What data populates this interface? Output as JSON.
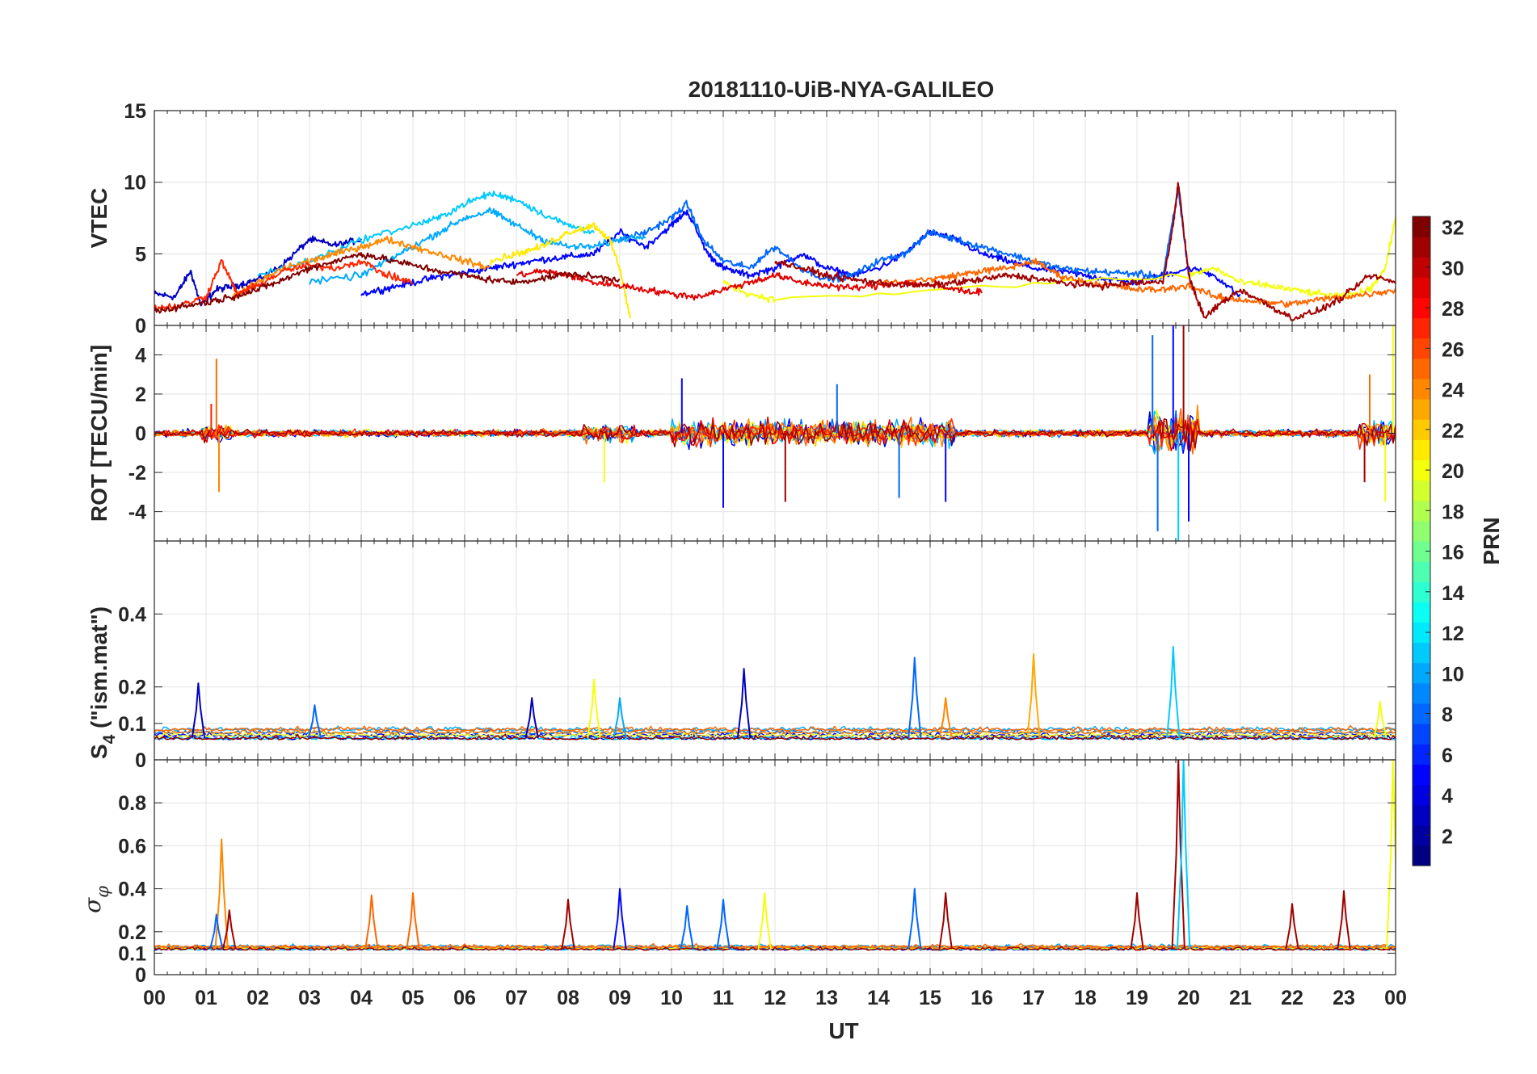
{
  "chart_data": [
    {
      "type": "line",
      "panel": "vtec",
      "title": "20181110-UiB-NYA-GALILEO",
      "ylabel": "VTEC",
      "ylim": [
        0,
        15
      ],
      "yticks": [
        0,
        5,
        10,
        15
      ],
      "xlim": [
        0,
        24
      ],
      "grid": true,
      "series_note": "",
      "series": [
        {
          "prn": 3,
          "x": [
            0.0,
            0.4,
            0.7,
            0.9,
            1.2,
            1.6,
            2.0,
            2.5,
            3.0,
            3.5,
            4.0
          ],
          "y": [
            2.2,
            2.0,
            3.8,
            1.4,
            2.5,
            2.8,
            3.2,
            4.3,
            6.0,
            5.6,
            6.0
          ]
        },
        {
          "prn": 5,
          "x": [
            4.0,
            4.5,
            5.0,
            5.5,
            6.0,
            6.5,
            7.0,
            7.5,
            8.0,
            8.5,
            9.0,
            9.5,
            10.0,
            10.3,
            10.7,
            11.0,
            11.5,
            12.0,
            12.5,
            13.0,
            13.5,
            14.0,
            14.5,
            15.0,
            15.5,
            16.0,
            16.5,
            17.0,
            17.5,
            18.0,
            18.5,
            19.0,
            19.5,
            20.0,
            20.5,
            21.0
          ],
          "y": [
            2.2,
            2.6,
            3.0,
            3.4,
            3.7,
            4.0,
            4.3,
            4.6,
            4.8,
            5.0,
            6.5,
            5.5,
            7.0,
            8.0,
            5.0,
            4.0,
            3.5,
            4.0,
            5.0,
            4.0,
            3.5,
            4.0,
            5.0,
            6.5,
            6.0,
            5.0,
            4.5,
            4.0,
            3.8,
            3.5,
            3.2,
            3.0,
            3.5,
            4.0,
            3.5,
            2.0
          ]
        },
        {
          "prn": 8,
          "x": [
            9.0,
            9.5,
            10.0,
            10.3,
            10.6,
            11.0,
            11.5,
            12.0,
            12.5,
            13.0,
            13.5,
            14.0,
            14.5,
            15.0,
            15.5,
            16.0,
            16.5,
            17.0,
            17.5,
            18.0,
            18.5,
            19.0,
            19.5,
            19.8,
            20.0
          ],
          "y": [
            6.0,
            6.5,
            7.5,
            8.5,
            6.0,
            4.5,
            4.0,
            5.5,
            4.0,
            3.2,
            3.5,
            4.5,
            5.0,
            6.5,
            6.0,
            5.5,
            5.0,
            4.5,
            4.0,
            3.8,
            3.7,
            3.6,
            3.4,
            9.5,
            3.5
          ]
        },
        {
          "prn": 11,
          "x": [
            2.0,
            3.0,
            4.0,
            5.0,
            5.5,
            6.0,
            6.5,
            7.0,
            7.5,
            8.0,
            8.5
          ],
          "y": [
            3.5,
            4.5,
            6.0,
            7.0,
            7.5,
            8.5,
            9.2,
            8.8,
            7.8,
            7.0,
            6.5
          ]
        },
        {
          "prn": 10,
          "x": [
            3.0,
            4.0,
            4.5,
            5.0,
            5.5,
            6.0,
            6.5,
            7.0,
            7.5,
            8.0,
            8.5,
            9.0,
            9.5
          ],
          "y": [
            3.0,
            3.5,
            4.5,
            5.5,
            6.5,
            7.5,
            8.0,
            7.0,
            6.0,
            5.5,
            5.5,
            6.0,
            6.3
          ]
        },
        {
          "prn": 21,
          "x": [
            6.5,
            7.0,
            7.5,
            8.0,
            8.5,
            8.8,
            9.0,
            9.2
          ],
          "y": [
            4.5,
            5.0,
            5.5,
            6.5,
            7.0,
            6.0,
            4.0,
            0.5
          ]
        },
        {
          "prn": 20,
          "x": [
            11.0,
            11.5,
            12.0,
            20.0,
            20.5,
            21.0,
            21.5,
            22.0,
            22.5,
            23.0,
            23.5,
            23.8,
            24.0
          ],
          "y": [
            3.0,
            2.2,
            1.8,
            3.5,
            4.0,
            3.0,
            2.8,
            2.5,
            2.2,
            2.0,
            2.5,
            4.0,
            7.5
          ]
        },
        {
          "prn": 24,
          "x": [
            1.5,
            2.0,
            2.5,
            3.0,
            3.5,
            4.0,
            4.5,
            5.0,
            5.5,
            6.0,
            6.5
          ],
          "y": [
            2.0,
            3.0,
            4.0,
            4.5,
            5.0,
            5.5,
            6.0,
            5.5,
            5.0,
            4.5,
            4.0
          ]
        },
        {
          "prn": 25,
          "x": [
            14.0,
            15.0,
            15.5,
            16.0,
            16.5,
            17.0,
            17.5,
            18.0,
            18.5,
            19.0,
            19.5,
            20.0,
            20.5,
            21.0,
            21.5,
            22.0,
            22.5,
            23.0,
            23.5,
            24.0
          ],
          "y": [
            3.0,
            3.2,
            3.5,
            3.8,
            4.0,
            4.5,
            3.5,
            3.0,
            2.8,
            2.5,
            2.5,
            2.8,
            2.0,
            1.8,
            1.6,
            1.5,
            1.8,
            2.0,
            2.2,
            2.5
          ]
        },
        {
          "prn": 27,
          "x": [
            0.0,
            0.5,
            1.0,
            1.3,
            1.6,
            2.0,
            2.5,
            3.0,
            3.5,
            4.0,
            4.5,
            5.0
          ],
          "y": [
            1.2,
            1.4,
            2.0,
            4.5,
            2.2,
            2.8,
            3.8,
            4.2,
            4.0,
            4.5,
            3.5,
            3.0
          ]
        },
        {
          "prn": 29,
          "x": [
            7.0,
            7.5,
            8.0,
            8.5,
            9.0,
            9.5,
            10.0,
            10.5,
            11.0,
            11.5,
            12.0,
            12.5,
            13.0,
            13.5,
            14.0,
            14.5,
            15.0,
            15.5,
            16.0
          ],
          "y": [
            3.5,
            3.8,
            3.5,
            3.0,
            2.8,
            2.5,
            2.2,
            2.0,
            2.5,
            3.0,
            3.5,
            3.0,
            2.8,
            2.6,
            2.8,
            3.0,
            2.8,
            2.5,
            2.3
          ]
        },
        {
          "prn": 31,
          "x": [
            12.0,
            12.5,
            13.0,
            13.5,
            14.0,
            14.5,
            15.0,
            15.5,
            16.0,
            16.5,
            17.0,
            17.5,
            18.0,
            18.5,
            19.0,
            19.5,
            19.7,
            19.8,
            20.0,
            20.3,
            20.6,
            21.0,
            21.5,
            22.0,
            22.5,
            23.0,
            23.5,
            24.0
          ],
          "y": [
            4.5,
            4.0,
            3.5,
            3.2,
            3.0,
            2.8,
            2.8,
            3.0,
            3.2,
            3.5,
            3.3,
            3.0,
            2.8,
            2.8,
            3.0,
            3.0,
            7.0,
            10.0,
            3.5,
            0.5,
            1.5,
            2.5,
            1.5,
            0.5,
            1.0,
            2.0,
            3.5,
            3.0
          ]
        },
        {
          "prn": 32,
          "x": [
            0.0,
            0.5,
            1.0,
            1.5,
            2.0,
            2.5,
            3.0,
            3.5,
            4.0,
            4.5,
            5.0,
            5.5,
            6.0,
            6.5,
            7.0,
            7.5,
            8.0,
            8.5,
            9.0
          ],
          "y": [
            1.0,
            1.3,
            1.6,
            2.0,
            2.5,
            3.2,
            4.0,
            4.5,
            5.0,
            4.6,
            4.2,
            3.8,
            3.5,
            3.2,
            3.0,
            3.3,
            3.6,
            3.4,
            3.2
          ]
        }
      ]
    },
    {
      "type": "line",
      "panel": "rot",
      "ylabel": "ROT [TECU/min]",
      "ylim": [
        -5.5,
        5.5
      ],
      "yticks": [
        -4,
        -2,
        0,
        2,
        4
      ],
      "xlim": [
        0,
        24
      ],
      "grid": true,
      "spikes": [
        {
          "x": 1.2,
          "y": 3.8,
          "prn": 25
        },
        {
          "x": 1.25,
          "y": -3.0,
          "prn": 24
        },
        {
          "x": 1.1,
          "y": 1.5,
          "prn": 27
        },
        {
          "x": 8.7,
          "y": -2.5,
          "prn": 20
        },
        {
          "x": 10.2,
          "y": 2.8,
          "prn": 5
        },
        {
          "x": 11.0,
          "y": -3.8,
          "prn": 5
        },
        {
          "x": 12.2,
          "y": -3.5,
          "prn": 31
        },
        {
          "x": 13.2,
          "y": 2.5,
          "prn": 8
        },
        {
          "x": 14.4,
          "y": -3.3,
          "prn": 8
        },
        {
          "x": 15.3,
          "y": -3.5,
          "prn": 5
        },
        {
          "x": 19.3,
          "y": 5.0,
          "prn": 8
        },
        {
          "x": 19.4,
          "y": -5.0,
          "prn": 8
        },
        {
          "x": 19.7,
          "y": 5.5,
          "prn": 5
        },
        {
          "x": 19.8,
          "y": -5.5,
          "prn": 11
        },
        {
          "x": 19.9,
          "y": 5.5,
          "prn": 31
        },
        {
          "x": 20.0,
          "y": -4.5,
          "prn": 5
        },
        {
          "x": 23.4,
          "y": -2.5,
          "prn": 31
        },
        {
          "x": 23.5,
          "y": 3.0,
          "prn": 25
        },
        {
          "x": 23.8,
          "y": -3.5,
          "prn": 20
        },
        {
          "x": 23.95,
          "y": 5.5,
          "prn": 20
        }
      ]
    },
    {
      "type": "line",
      "panel": "s4",
      "ylabel_main": "S",
      "ylabel_sub": "4",
      "ylabel_rest": " (\"ism.mat\")",
      "ylim": [
        0,
        0.6
      ],
      "yticks": [
        0,
        0.1,
        0.2,
        0.4
      ],
      "ytick_labels": [
        "0",
        "0.1",
        "0.2",
        "0.4"
      ],
      "xlim": [
        0,
        24
      ],
      "grid": true,
      "peaks": [
        {
          "x": 0.85,
          "y": 0.21,
          "prn": 3
        },
        {
          "x": 3.1,
          "y": 0.15,
          "prn": 8
        },
        {
          "x": 7.3,
          "y": 0.17,
          "prn": 3
        },
        {
          "x": 8.5,
          "y": 0.22,
          "prn": 20
        },
        {
          "x": 9.0,
          "y": 0.17,
          "prn": 10
        },
        {
          "x": 11.4,
          "y": 0.25,
          "prn": 3
        },
        {
          "x": 14.7,
          "y": 0.28,
          "prn": 8
        },
        {
          "x": 15.3,
          "y": 0.17,
          "prn": 24
        },
        {
          "x": 17.0,
          "y": 0.29,
          "prn": 23
        },
        {
          "x": 19.7,
          "y": 0.31,
          "prn": 11
        },
        {
          "x": 23.7,
          "y": 0.16,
          "prn": 20
        }
      ],
      "baseline": 0.06
    },
    {
      "type": "line",
      "panel": "sigma_phi",
      "ylabel_main": "σ",
      "ylabel_sub": "φ",
      "ylim": [
        0,
        1
      ],
      "yticks": [
        0,
        0.1,
        0.2,
        0.4,
        0.6,
        0.8
      ],
      "ytick_labels": [
        "0",
        "0.1",
        "0.2",
        "0.4",
        "0.6",
        "0.8"
      ],
      "xlim": [
        0,
        24
      ],
      "xlabel": "UT",
      "xtick_labels": [
        "00",
        "01",
        "02",
        "03",
        "04",
        "05",
        "06",
        "07",
        "08",
        "09",
        "10",
        "11",
        "12",
        "13",
        "14",
        "15",
        "16",
        "17",
        "18",
        "19",
        "20",
        "21",
        "22",
        "23",
        "00"
      ],
      "grid": true,
      "peaks": [
        {
          "x": 1.3,
          "y": 0.63,
          "prn": 24
        },
        {
          "x": 1.2,
          "y": 0.28,
          "prn": 8
        },
        {
          "x": 1.45,
          "y": 0.3,
          "prn": 31
        },
        {
          "x": 4.2,
          "y": 0.37,
          "prn": 25
        },
        {
          "x": 5.0,
          "y": 0.38,
          "prn": 25
        },
        {
          "x": 8.0,
          "y": 0.35,
          "prn": 31
        },
        {
          "x": 9.0,
          "y": 0.4,
          "prn": 5
        },
        {
          "x": 10.3,
          "y": 0.32,
          "prn": 8
        },
        {
          "x": 11.0,
          "y": 0.35,
          "prn": 8
        },
        {
          "x": 11.8,
          "y": 0.38,
          "prn": 20
        },
        {
          "x": 14.7,
          "y": 0.4,
          "prn": 8
        },
        {
          "x": 15.3,
          "y": 0.38,
          "prn": 31
        },
        {
          "x": 19.0,
          "y": 0.38,
          "prn": 31
        },
        {
          "x": 19.8,
          "y": 1.0,
          "prn": 31
        },
        {
          "x": 19.9,
          "y": 1.0,
          "prn": 11
        },
        {
          "x": 22.0,
          "y": 0.33,
          "prn": 31
        },
        {
          "x": 23.0,
          "y": 0.39,
          "prn": 31
        },
        {
          "x": 23.95,
          "y": 1.0,
          "prn": 20
        }
      ],
      "baseline": 0.12
    }
  ],
  "colorbar": {
    "label": "PRN",
    "range": [
      1,
      32
    ],
    "tick_labels": [
      "2",
      "4",
      "6",
      "8",
      "10",
      "12",
      "14",
      "16",
      "18",
      "20",
      "22",
      "24",
      "26",
      "28",
      "30",
      "32"
    ],
    "colormap": "jet"
  }
}
